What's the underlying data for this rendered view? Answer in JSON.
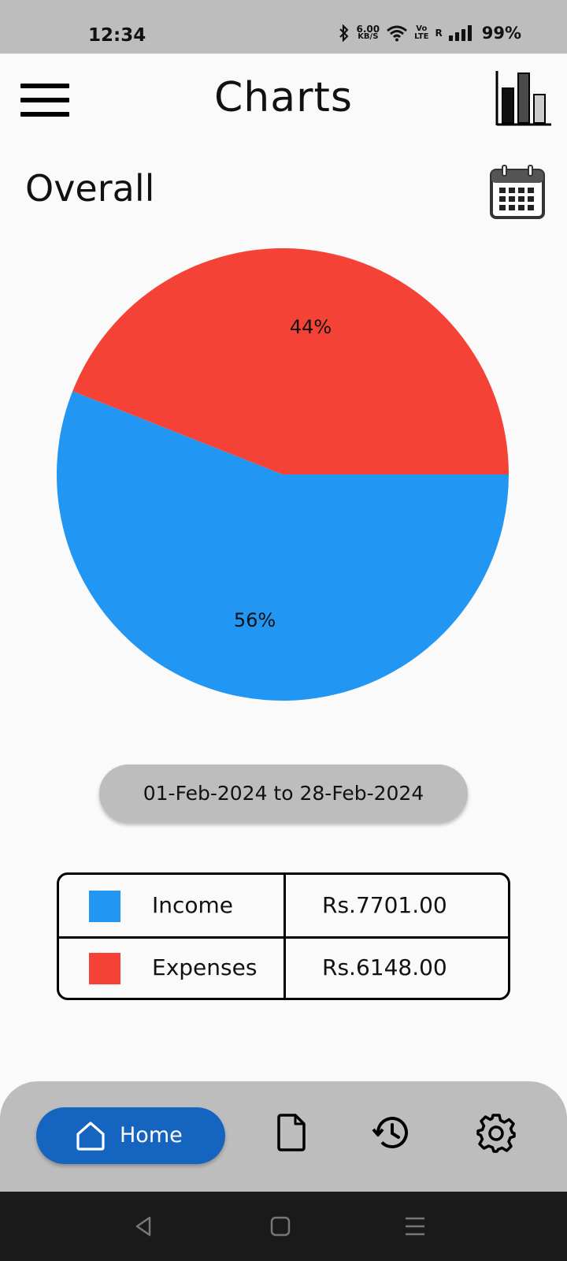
{
  "status_bar": {
    "time": "12:34",
    "net_speed_value": "6.00",
    "net_speed_unit": "KB/S",
    "volte_top": "Vo",
    "volte_bottom": "LTE",
    "roaming": "R",
    "battery": "99%"
  },
  "header": {
    "title": "Charts",
    "menu_icon": "hamburger-menu-icon",
    "right_icon": "bar-chart-icon"
  },
  "section": {
    "title": "Overall",
    "calendar_icon": "calendar-icon"
  },
  "chart_data": {
    "type": "pie",
    "slices": [
      {
        "name": "Income",
        "value": 56,
        "label": "56%",
        "color": "#2196f3"
      },
      {
        "name": "Expenses",
        "value": 44,
        "label": "44%",
        "color": "#f44336"
      }
    ]
  },
  "date_range": "01-Feb-2024 to 28-Feb-2024",
  "summary": {
    "rows": [
      {
        "label": "Income",
        "value": "Rs.7701.00",
        "color": "#2196f3"
      },
      {
        "label": "Expenses",
        "value": "Rs.6148.00",
        "color": "#f44336"
      }
    ]
  },
  "bottom_nav": {
    "home_label": "Home",
    "active_color": "#1565c0",
    "icons": [
      "home-icon",
      "document-icon",
      "history-icon",
      "settings-icon"
    ]
  }
}
